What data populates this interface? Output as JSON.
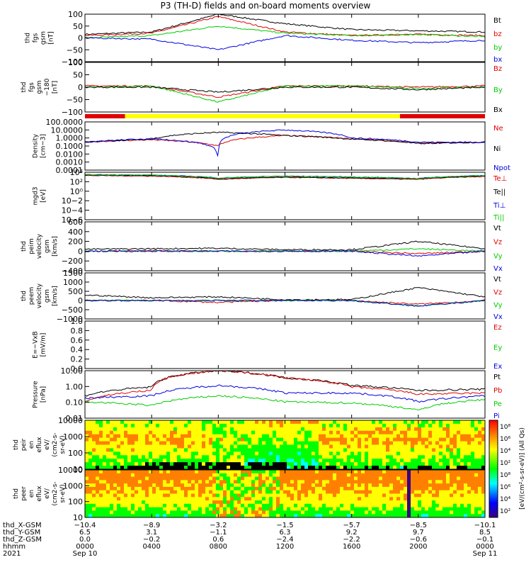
{
  "title": "P3 (TH-D) fields and on-board moments overview",
  "colors": {
    "black": "#000000",
    "red": "#e00000",
    "green": "#00cc00",
    "blue": "#0000e0"
  },
  "panels": [
    {
      "id": "fgs",
      "ylabel": [
        "thd",
        "fgs",
        "gsm",
        "[nT]"
      ],
      "yticks": [
        "100",
        "50",
        "0",
        "−50",
        "−100"
      ],
      "legend": [
        {
          "text": "Bt",
          "color": "#000000"
        },
        {
          "text": "bz",
          "color": "#e00000"
        },
        {
          "text": "by",
          "color": "#00cc00"
        },
        {
          "text": "bx",
          "color": "#0000e0"
        }
      ]
    },
    {
      "id": "fgs_dbl",
      "ylabel": [
        "thd",
        "fgs",
        "gsm",
        "−180",
        "[nT]"
      ],
      "yticks": [
        "100",
        "50",
        "0",
        "−50",
        "−100"
      ],
      "legend": [
        {
          "text": "Bz",
          "color": "#e00000"
        },
        {
          "text": "By",
          "color": "#00cc00"
        },
        {
          "text": "Bx",
          "color": "#000000"
        }
      ]
    },
    {
      "id": "density",
      "ylabel": [
        "Density",
        "[cm−3]"
      ],
      "yticks": [
        "100.0000",
        "10.0000",
        "1.0000",
        "0.1000",
        "0.0100",
        "0.0010",
        "0.0001"
      ],
      "legend": [
        {
          "text": "Ne",
          "color": "#e00000"
        },
        {
          "text": "Ni",
          "color": "#000000"
        },
        {
          "text": "Npot",
          "color": "#0000e0"
        }
      ]
    },
    {
      "id": "temp",
      "ylabel": [
        "mgd3",
        "[eV]"
      ],
      "yticks": [
        "10⁴",
        "10²",
        "10⁰",
        "10−2",
        "10−4",
        "10−6"
      ],
      "legend": [
        {
          "text": "Te⊥",
          "color": "#e00000"
        },
        {
          "text": "Te||",
          "color": "#000000"
        },
        {
          "text": "Ti⊥",
          "color": "#0000e0"
        },
        {
          "text": "Ti||",
          "color": "#00cc00"
        }
      ]
    },
    {
      "id": "peim",
      "ylabel": [
        "thd",
        "peim",
        "velocity",
        "gsm",
        "[km/s]"
      ],
      "yticks": [
        "600",
        "400",
        "200",
        "0",
        "−200",
        "−400"
      ],
      "legend": [
        {
          "text": "Vt",
          "color": "#000000"
        },
        {
          "text": "Vz",
          "color": "#e00000"
        },
        {
          "text": "Vy",
          "color": "#00cc00"
        },
        {
          "text": "Vx",
          "color": "#0000e0"
        }
      ]
    },
    {
      "id": "peem",
      "ylabel": [
        "thd",
        "peem",
        "velocity",
        "gsm",
        "[km/s]"
      ],
      "yticks": [
        "1500",
        "1000",
        "500",
        "0",
        "−500",
        "−1000"
      ],
      "legend": [
        {
          "text": "Vt",
          "color": "#000000"
        },
        {
          "text": "Vz",
          "color": "#e00000"
        },
        {
          "text": "Vy",
          "color": "#00cc00"
        },
        {
          "text": "Vx",
          "color": "#0000e0"
        }
      ]
    },
    {
      "id": "efield",
      "ylabel": [
        "E=−VxB",
        "[mV/m]"
      ],
      "yticks": [
        "1.0",
        "0.8",
        "0.6",
        "0.4",
        "0.2",
        "0.0"
      ],
      "legend": [
        {
          "text": "Ez",
          "color": "#e00000"
        },
        {
          "text": "Ey",
          "color": "#00cc00"
        },
        {
          "text": "Ex",
          "color": "#0000e0"
        }
      ]
    },
    {
      "id": "pressure",
      "ylabel": [
        "Pressure",
        "[nPa]"
      ],
      "yticks": [
        "10.00",
        "1.00",
        "0.10",
        "0.01"
      ],
      "legend": [
        {
          "text": "Pt",
          "color": "#000000"
        },
        {
          "text": "Pb",
          "color": "#e00000"
        },
        {
          "text": "Pe",
          "color": "#00cc00"
        },
        {
          "text": "Pi",
          "color": "#0000e0"
        }
      ]
    },
    {
      "id": "peir",
      "ylabel": [
        "thd",
        "peir",
        "en",
        "eflux",
        "eV/",
        "(cm2-s-",
        "sr-eV)"
      ],
      "yticks": [
        "10000",
        "1000",
        "100",
        "10"
      ],
      "legend": []
    },
    {
      "id": "peer",
      "ylabel": [
        "thd",
        "peer",
        "en",
        "eflux",
        "eV/",
        "(cm2-s-",
        "sr-eV)"
      ],
      "yticks": [
        "10000",
        "1000",
        "100",
        "10"
      ],
      "legend": []
    }
  ],
  "colorbar": {
    "label": "[eV/(cm²-s-sr-eV)] (All Qs)",
    "upper_ticks": [
      "10⁸",
      "10⁶",
      "10⁴",
      "10²"
    ],
    "lower_ticks": [
      "10⁸",
      "10⁶",
      "10⁴",
      "10²"
    ]
  },
  "xaxis": {
    "rows": [
      {
        "label": "thd_X-GSM",
        "values": [
          "−10.4",
          "−8.9",
          "−3.2",
          "−1.5",
          "−5.7",
          "−8.5",
          "−10.1"
        ]
      },
      {
        "label": "thd_Y-GSM",
        "values": [
          "6.5",
          "3.1",
          "−1.1",
          "6.3",
          "9.2",
          "9.7",
          "8.5"
        ]
      },
      {
        "label": "thd_Z-GSM",
        "values": [
          "0.0",
          "−0.2",
          "0.6",
          "−2.4",
          "−2.2",
          "−0.6",
          "−0.1"
        ]
      },
      {
        "label": "hhmm",
        "values": [
          "0000",
          "0400",
          "0800",
          "1200",
          "1600",
          "2000",
          "0000"
        ]
      },
      {
        "label": "2021",
        "values": [
          "Sep 10",
          "",
          "",
          "",
          "",
          "",
          "Sep 11"
        ]
      }
    ]
  },
  "chart_data": [
    {
      "type": "line",
      "title": "P3 (TH-D) fields and on-board moments overview",
      "x_hours": [
        0,
        4,
        8,
        12,
        16,
        20,
        24
      ],
      "ylim": [
        -100,
        100
      ],
      "series": [
        {
          "name": "Bt",
          "values": [
            15,
            25,
            100,
            60,
            35,
            30,
            25
          ]
        },
        {
          "name": "bz",
          "values": [
            10,
            20,
            90,
            25,
            10,
            15,
            10
          ]
        },
        {
          "name": "by",
          "values": [
            0,
            10,
            50,
            20,
            10,
            15,
            5
          ]
        },
        {
          "name": "bx",
          "values": [
            0,
            -5,
            -50,
            10,
            -10,
            -20,
            -10
          ]
        }
      ]
    },
    {
      "type": "line",
      "ylim": [
        -100,
        100
      ],
      "series": [
        {
          "name": "Bz",
          "values": [
            5,
            5,
            -40,
            5,
            5,
            0,
            5
          ]
        },
        {
          "name": "By",
          "values": [
            0,
            5,
            -60,
            5,
            5,
            -5,
            0
          ]
        },
        {
          "name": "Bx",
          "values": [
            0,
            0,
            -20,
            0,
            0,
            -10,
            0
          ]
        }
      ]
    },
    {
      "type": "line",
      "scale": "log",
      "ylim": [
        0.0001,
        100
      ],
      "series": [
        {
          "name": "Ne",
          "values": [
            0.3,
            0.6,
            0.1,
            2,
            0.8,
            0.2,
            0.3
          ]
        },
        {
          "name": "Ni",
          "values": [
            0.3,
            0.7,
            5,
            2,
            0.7,
            0.2,
            0.3
          ]
        },
        {
          "name": "Npot",
          "values": [
            0.3,
            0.8,
            0.0001,
            10,
            1,
            0.3,
            0.3
          ]
        }
      ]
    },
    {
      "type": "line",
      "scale": "log",
      "ylim": [
        1e-06,
        10000
      ],
      "series": [
        {
          "name": "Te⊥",
          "values": [
            2000,
            1500,
            300,
            800,
            500,
            300,
            1200
          ]
        },
        {
          "name": "Te||",
          "values": [
            2500,
            2000,
            400,
            1000,
            600,
            400,
            1500
          ]
        },
        {
          "name": "Ti⊥",
          "values": [
            3000,
            2500,
            600,
            1500,
            1000,
            500,
            2000
          ]
        },
        {
          "name": "Ti||",
          "values": [
            3000,
            2500,
            600,
            1500,
            1000,
            500,
            2000
          ]
        }
      ]
    },
    {
      "type": "line",
      "ylim": [
        -400,
        600
      ],
      "series": [
        {
          "name": "Vt",
          "values": [
            40,
            50,
            60,
            30,
            30,
            200,
            50
          ]
        },
        {
          "name": "Vz",
          "values": [
            0,
            10,
            0,
            0,
            0,
            -50,
            0
          ]
        },
        {
          "name": "Vy",
          "values": [
            0,
            0,
            0,
            0,
            0,
            50,
            0
          ]
        },
        {
          "name": "Vx",
          "values": [
            0,
            0,
            0,
            0,
            0,
            -100,
            0
          ]
        }
      ]
    },
    {
      "type": "line",
      "ylim": [
        -1000,
        1500
      ],
      "series": [
        {
          "name": "Vt",
          "values": [
            300,
            150,
            200,
            50,
            50,
            700,
            200
          ]
        },
        {
          "name": "Vz",
          "values": [
            0,
            0,
            -100,
            0,
            0,
            -200,
            0
          ]
        },
        {
          "name": "Vy",
          "values": [
            0,
            0,
            0,
            0,
            0,
            -300,
            0
          ]
        },
        {
          "name": "Vx",
          "values": [
            0,
            0,
            0,
            0,
            0,
            -300,
            0
          ]
        }
      ]
    },
    {
      "type": "line",
      "ylim": [
        0,
        1
      ],
      "series": []
    },
    {
      "type": "line",
      "scale": "log",
      "ylim": [
        0.005,
        30
      ],
      "series": [
        {
          "name": "Pt",
          "values": [
            0.3,
            1.5,
            30,
            8,
            2,
            0.8,
            1
          ]
        },
        {
          "name": "Pb",
          "values": [
            0.1,
            0.8,
            30,
            8,
            1.5,
            0.4,
            0.5
          ]
        },
        {
          "name": "Pe",
          "values": [
            0.1,
            0.05,
            0.3,
            0.1,
            0.08,
            0.02,
            0.15
          ]
        },
        {
          "name": "Pi",
          "values": [
            0.2,
            0.3,
            2,
            0.5,
            0.5,
            0.1,
            0.3
          ]
        }
      ]
    },
    {
      "type": "heatmap",
      "ylim": [
        10,
        20000
      ],
      "scale": "log"
    },
    {
      "type": "heatmap",
      "ylim": [
        10,
        20000
      ],
      "scale": "log"
    }
  ]
}
